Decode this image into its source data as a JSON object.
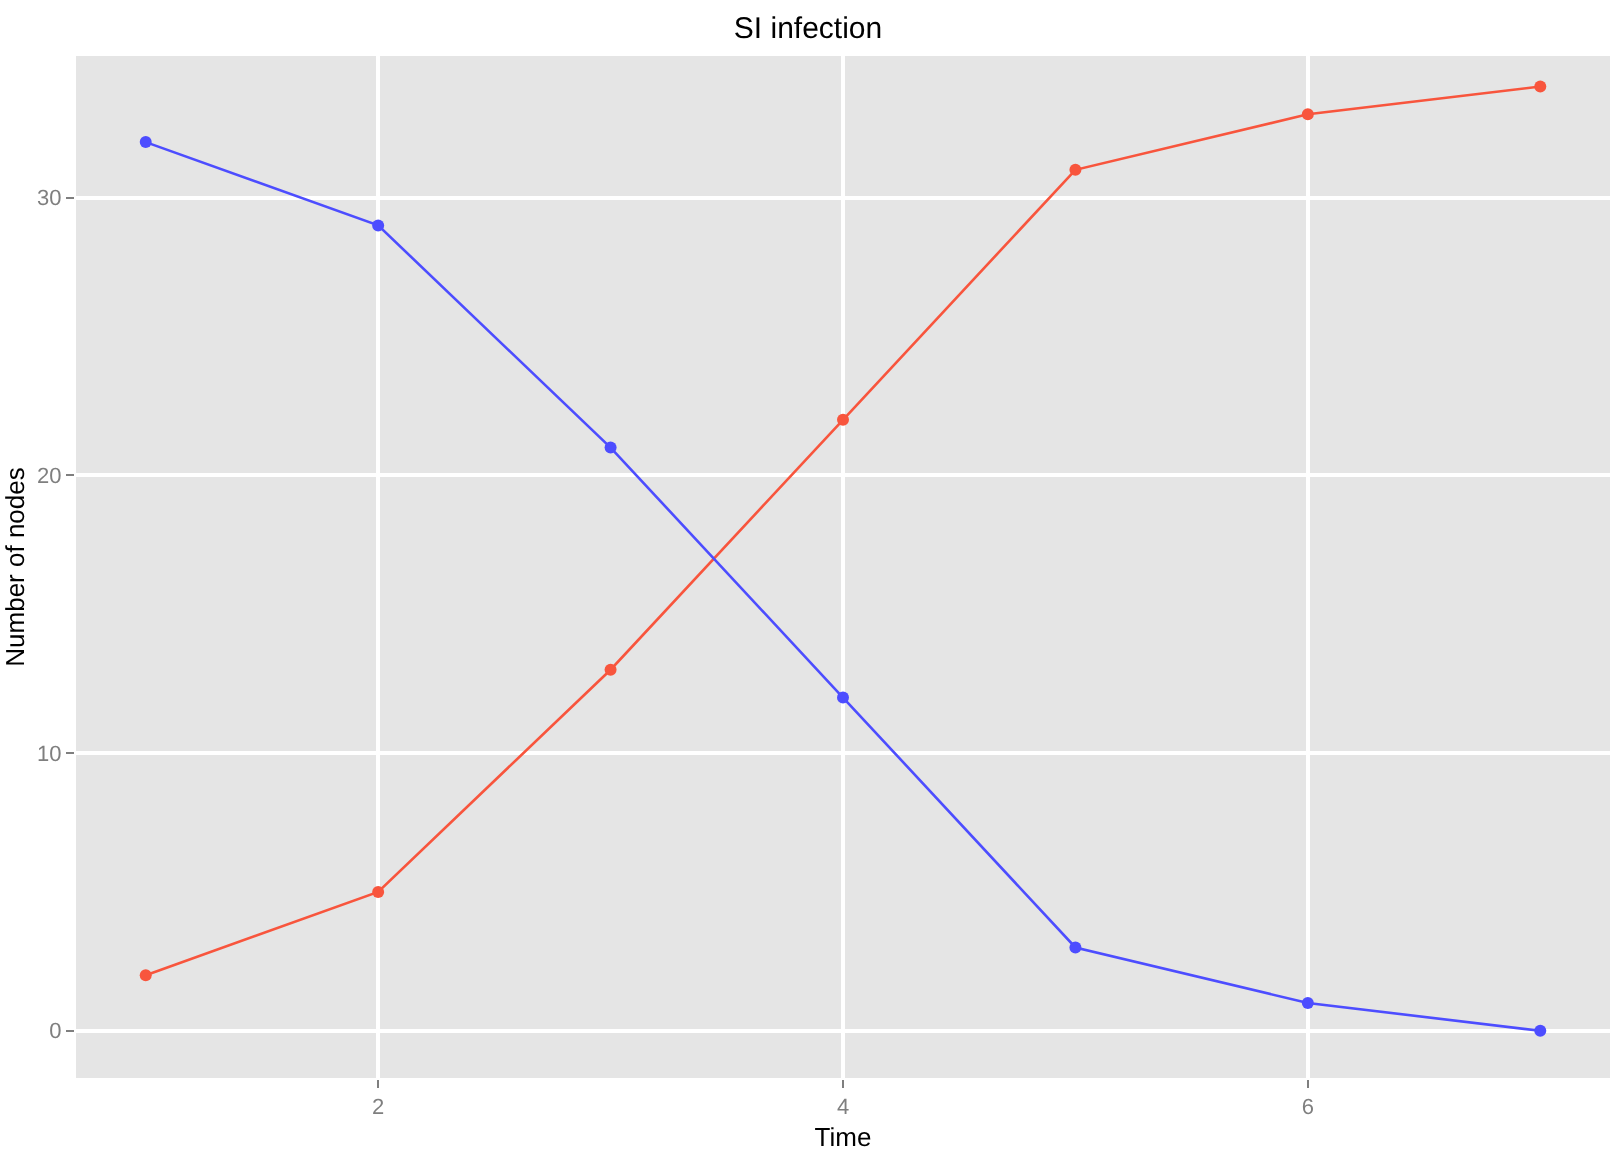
{
  "chart_data": {
    "type": "line",
    "title": "SI infection",
    "xlabel": "Time",
    "ylabel": "Number of nodes",
    "x": [
      1,
      2,
      3,
      4,
      5,
      6,
      7
    ],
    "series": [
      {
        "color": "#f8553d",
        "values": [
          2,
          5,
          13,
          22,
          31,
          33,
          34
        ]
      },
      {
        "color": "#4d4dff",
        "values": [
          32,
          29,
          21,
          12,
          3,
          1,
          0
        ]
      }
    ],
    "xlim": [
      0.7,
      7.3
    ],
    "xticks": [
      2,
      4,
      6
    ],
    "ylim": [
      -1.7,
      35.1
    ],
    "yticks": [
      0,
      10,
      20,
      30
    ],
    "grid": true,
    "marker": "circle",
    "line_style": "solid"
  }
}
